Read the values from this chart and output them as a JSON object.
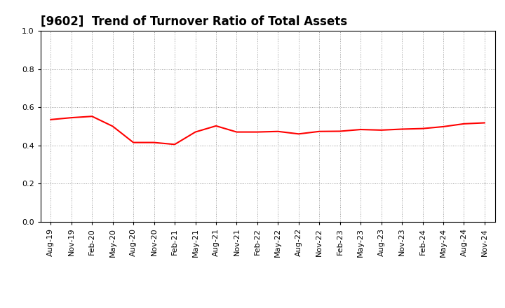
{
  "title": "[9602]  Trend of Turnover Ratio of Total Assets",
  "line_color": "#FF0000",
  "line_width": 1.5,
  "background_color": "#FFFFFF",
  "grid_color": "#999999",
  "ylim": [
    0.0,
    1.0
  ],
  "yticks": [
    0.0,
    0.2,
    0.4,
    0.6,
    0.8,
    1.0
  ],
  "x_labels": [
    "Aug-19",
    "Nov-19",
    "Feb-20",
    "May-20",
    "Aug-20",
    "Nov-20",
    "Feb-21",
    "May-21",
    "Aug-21",
    "Nov-21",
    "Feb-22",
    "May-22",
    "Aug-22",
    "Nov-22",
    "Feb-23",
    "May-23",
    "Aug-23",
    "Nov-23",
    "Feb-24",
    "May-24",
    "Aug-24",
    "Nov-24"
  ],
  "values": [
    0.535,
    0.545,
    0.552,
    0.5,
    0.415,
    0.415,
    0.405,
    0.47,
    0.502,
    0.47,
    0.47,
    0.473,
    0.46,
    0.473,
    0.474,
    0.483,
    0.48,
    0.485,
    0.488,
    0.498,
    0.513,
    0.518
  ],
  "title_fontsize": 12,
  "tick_fontsize": 8
}
